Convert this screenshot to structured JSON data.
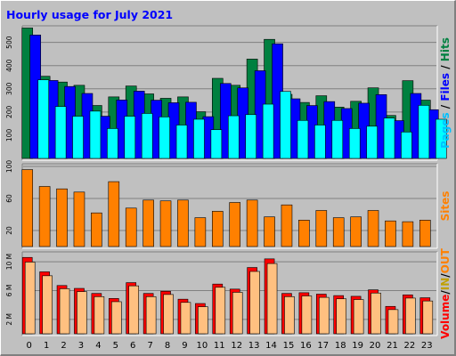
{
  "chart_data": {
    "type": "bar",
    "title": "Hourly usage for July 2021",
    "categories": [
      "0",
      "1",
      "2",
      "3",
      "4",
      "5",
      "6",
      "7",
      "8",
      "9",
      "10",
      "11",
      "12",
      "13",
      "14",
      "15",
      "16",
      "17",
      "18",
      "19",
      "20",
      "21",
      "22",
      "23"
    ],
    "panels": [
      {
        "id": "pages-files-hits",
        "ylim": [
          0,
          560
        ],
        "yticks": [
          {
            "value": 100,
            "label": "100"
          },
          {
            "value": 200,
            "label": "200"
          },
          {
            "value": 300,
            "label": "300"
          },
          {
            "value": 400,
            "label": "400"
          },
          {
            "value": 500,
            "label": "500"
          }
        ],
        "series": [
          {
            "name": "Hits",
            "color": "#008040",
            "values": [
              566,
              358,
              333,
              319,
              232,
              269,
              316,
              282,
              263,
              269,
              205,
              349,
              319,
              432,
              517,
              280,
              245,
              274,
              225,
              250,
              308,
              189,
              339,
              255
            ]
          },
          {
            "name": "Files",
            "color": "#0000ff",
            "values": [
              532,
              336,
              310,
              280,
              182,
              252,
              290,
              251,
              240,
              242,
              180,
              323,
              304,
              378,
              494,
              257,
              228,
              245,
              215,
              238,
              275,
              163,
              280,
              210
            ]
          },
          {
            "name": "Pages",
            "color": "#00ffff",
            "values": [
              335,
              220,
              178,
              200,
              125,
              178,
              190,
              175,
              140,
              165,
              120,
              180,
              185,
              230,
              285,
              160,
              140,
              160,
              125,
              135,
              170,
              110,
              225,
              165
            ]
          }
        ],
        "legend": [
          {
            "text": "Pages",
            "color": "#00c0ff"
          },
          {
            "text": " / ",
            "color": "#000000"
          },
          {
            "text": "Files",
            "color": "#0000ff"
          },
          {
            "text": " / ",
            "color": "#000000"
          },
          {
            "text": "Hits",
            "color": "#008040"
          }
        ]
      },
      {
        "id": "sites",
        "ylim": [
          0,
          100
        ],
        "yticks": [
          {
            "value": 20,
            "label": "20"
          },
          {
            "value": 60,
            "label": "60"
          },
          {
            "value": 100,
            "label": "100"
          }
        ],
        "series": [
          {
            "name": "Sites",
            "color": "#ff8000",
            "values": [
              96,
              75,
              72,
              68,
              42,
              81,
              48,
              58,
              57,
              58,
              36,
              44,
              55,
              58,
              37,
              52,
              33,
              45,
              36,
              37,
              45,
              32,
              31,
              33
            ]
          }
        ],
        "legend": [
          {
            "text": "Sites",
            "color": "#ff8000"
          }
        ]
      },
      {
        "id": "volume",
        "ylim": [
          0,
          11
        ],
        "yticks": [
          {
            "value": 2,
            "label": "2 M"
          },
          {
            "value": 6,
            "label": "6 M"
          },
          {
            "value": 10,
            "label": "10 M"
          }
        ],
        "series": [
          {
            "name": "Volume",
            "color": "#ff0000",
            "values": [
              10.6,
              8.6,
              6.7,
              6.3,
              5.6,
              4.9,
              7.1,
              5.6,
              5.9,
              4.8,
              4.2,
              6.9,
              6.2,
              9.2,
              10.4,
              5.6,
              5.7,
              5.5,
              5.3,
              5.2,
              6.1,
              3.8,
              5.4,
              5.0
            ]
          },
          {
            "name": "Out",
            "color": "#ffc080",
            "values": [
              10.2,
              8.3,
              6.5,
              6.1,
              5.4,
              4.7,
              6.9,
              5.4,
              5.7,
              4.6,
              4.0,
              6.7,
              6.0,
              8.9,
              10.0,
              5.4,
              5.5,
              5.3,
              5.1,
              5.0,
              5.9,
              3.6,
              5.2,
              4.8
            ]
          }
        ],
        "legend": [
          {
            "text": "Volume",
            "color": "#ff0000"
          },
          {
            "text": "/",
            "color": "#000000"
          },
          {
            "text": "IN",
            "color": "#c0a000"
          },
          {
            "text": "/",
            "color": "#000000"
          },
          {
            "text": "OUT",
            "color": "#ff8000"
          }
        ]
      }
    ]
  }
}
